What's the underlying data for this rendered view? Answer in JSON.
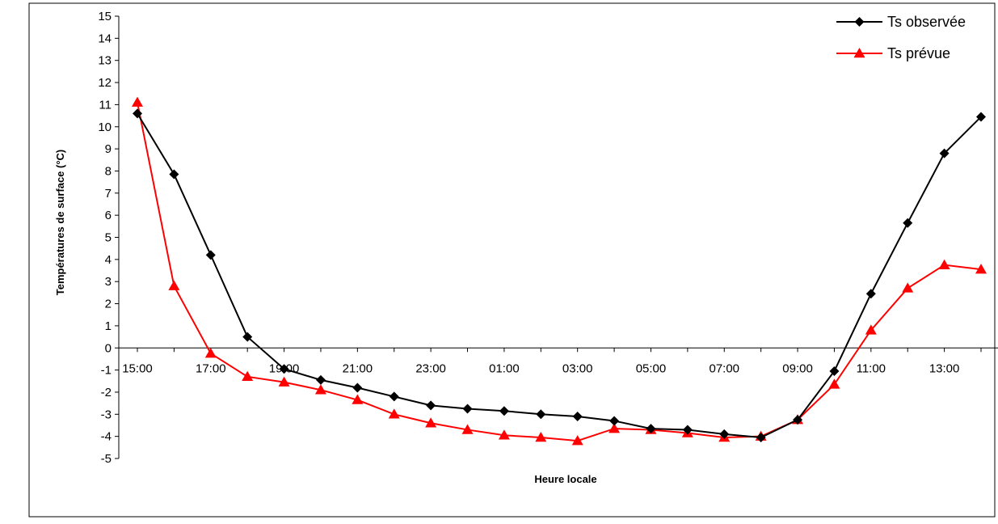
{
  "chart_data": {
    "type": "line",
    "xlabel": "Heure locale",
    "ylabel": "Températures de surface (°C)",
    "ylim": [
      -5,
      15
    ],
    "y_ticks": [
      15,
      14,
      13,
      12,
      11,
      10,
      9,
      8,
      7,
      6,
      5,
      4,
      3,
      2,
      1,
      0,
      -1,
      -2,
      -3,
      -4,
      -5
    ],
    "x": [
      "15:00",
      "16:00",
      "17:00",
      "18:00",
      "19:00",
      "20:00",
      "21:00",
      "22:00",
      "23:00",
      "00:00",
      "01:00",
      "02:00",
      "03:00",
      "04:00",
      "05:00",
      "06:00",
      "07:00",
      "08:00",
      "09:00",
      "10:00",
      "11:00",
      "12:00",
      "13:00",
      "14:00"
    ],
    "x_tick_labels": [
      "15:00",
      "17:00",
      "19:00",
      "21:00",
      "23:00",
      "01:00",
      "03:00",
      "05:00",
      "07:00",
      "09:00",
      "11:00",
      "13:00"
    ],
    "grid": false,
    "legend_position": "top-right",
    "series": [
      {
        "name": "Ts observée",
        "color": "#000000",
        "marker": "diamond",
        "values": [
          10.6,
          7.85,
          4.2,
          0.5,
          -0.95,
          -1.45,
          -1.8,
          -2.2,
          -2.6,
          -2.75,
          -2.85,
          -3.0,
          -3.1,
          -3.3,
          -3.65,
          -3.7,
          -3.9,
          -4.05,
          -3.25,
          -1.05,
          2.45,
          5.65,
          8.8,
          10.45
        ]
      },
      {
        "name": "Ts prévue",
        "color": "#ff0000",
        "marker": "triangle",
        "values": [
          11.1,
          2.8,
          -0.25,
          -1.3,
          -1.55,
          -1.9,
          -2.35,
          -3.0,
          -3.4,
          -3.7,
          -3.95,
          -4.05,
          -4.2,
          -3.65,
          -3.7,
          -3.85,
          -4.05,
          -4.0,
          -3.25,
          -1.65,
          0.8,
          2.7,
          3.75,
          3.55
        ]
      }
    ]
  }
}
